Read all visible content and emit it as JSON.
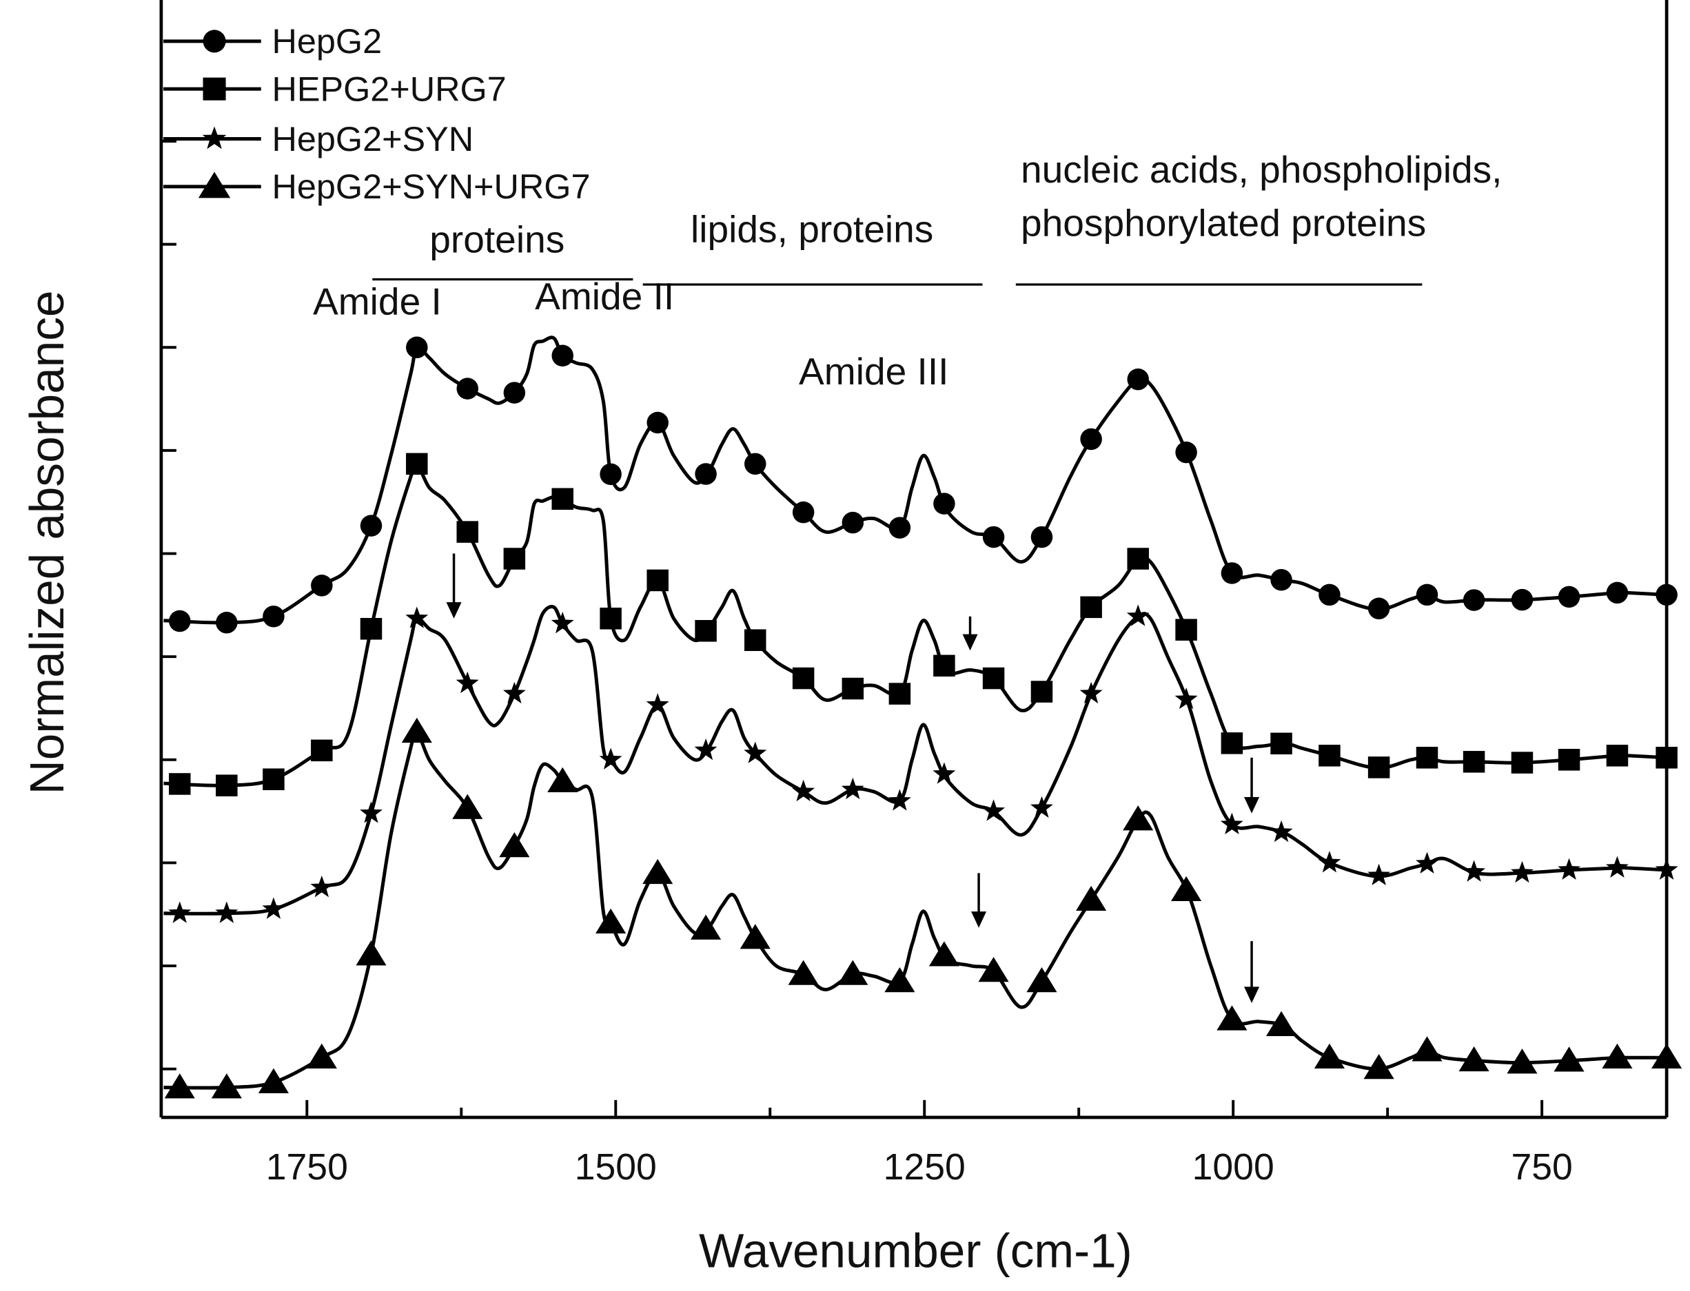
{
  "chart_data": {
    "type": "line",
    "title": "",
    "xlabel": "Wavenumber (cm-1)",
    "ylabel": "Normalized absorbance",
    "xlim": [
      1868,
      649
    ],
    "ylim": [
      0,
      10.84
    ],
    "x_reversed": true,
    "xticks_major": [
      1750,
      1500,
      1250,
      1000,
      750
    ],
    "xtick_labels": [
      "1750",
      "1500",
      "1250",
      "1000",
      "750"
    ],
    "xticks_minor": [
      1625,
      1375,
      1125,
      875
    ],
    "yticks_unlabeled": [
      0.47,
      1.47,
      2.47,
      3.47,
      4.47,
      5.47,
      6.47,
      7.47,
      8.47,
      9.47
    ],
    "grid": false,
    "legend_placement": "top-left",
    "x": [
      1866,
      1815,
      1777,
      1738,
      1717,
      1698,
      1682,
      1666,
      1661,
      1651,
      1638,
      1620,
      1603,
      1594,
      1582,
      1572,
      1566,
      1559,
      1550,
      1543,
      1532,
      1519,
      1510,
      1504,
      1493,
      1480,
      1466,
      1453,
      1436,
      1425,
      1414,
      1405,
      1396,
      1387,
      1370,
      1348,
      1330,
      1308,
      1291,
      1270,
      1260,
      1251,
      1242,
      1232,
      1212,
      1194,
      1172,
      1155,
      1132,
      1115,
      1093,
      1077,
      1067,
      1053,
      1036,
      1018,
      1001,
      979,
      959,
      944,
      922,
      884,
      856,
      843,
      829,
      803,
      768,
      728,
      689,
      680,
      649
    ],
    "marker_x": [
      1853,
      1815,
      1777,
      1738,
      1698,
      1661,
      1620,
      1582,
      1543,
      1504,
      1466,
      1427,
      1387,
      1348,
      1308,
      1270,
      1234,
      1194,
      1155,
      1115,
      1077,
      1038,
      1001,
      961,
      922,
      882,
      843,
      805,
      766,
      728,
      689,
      649
    ],
    "series": [
      {
        "name": "HepG2",
        "marker": "circle",
        "y": [
          4.82,
          4.8,
          4.86,
          5.16,
          5.32,
          5.74,
          6.42,
          7.21,
          7.47,
          7.37,
          7.21,
          7.07,
          6.97,
          6.93,
          7.03,
          7.21,
          7.49,
          7.53,
          7.56,
          7.39,
          7.32,
          7.26,
          6.95,
          6.24,
          6.11,
          6.53,
          6.74,
          6.42,
          6.16,
          6.26,
          6.53,
          6.68,
          6.53,
          6.34,
          6.11,
          5.87,
          5.68,
          5.77,
          5.81,
          5.72,
          6.11,
          6.42,
          6.21,
          5.89,
          5.68,
          5.63,
          5.39,
          5.63,
          6.21,
          6.58,
          6.95,
          7.16,
          7.11,
          6.84,
          6.4,
          5.79,
          5.28,
          5.26,
          5.21,
          5.18,
          5.07,
          4.93,
          5.03,
          5.07,
          5.0,
          5.02,
          5.02,
          5.05,
          5.09,
          5.09,
          5.07
        ]
      },
      {
        "name": "HEPG2+URG7",
        "marker": "square",
        "y": [
          3.24,
          3.22,
          3.28,
          3.56,
          3.71,
          4.74,
          5.58,
          6.21,
          6.34,
          6.11,
          5.98,
          5.68,
          5.26,
          5.16,
          5.42,
          5.58,
          5.95,
          5.98,
          6.02,
          6.0,
          5.92,
          5.89,
          5.79,
          4.84,
          4.63,
          4.95,
          5.21,
          4.84,
          4.63,
          4.74,
          4.95,
          5.11,
          4.84,
          4.63,
          4.42,
          4.26,
          4.05,
          4.16,
          4.19,
          4.11,
          4.53,
          4.82,
          4.63,
          4.32,
          4.34,
          4.26,
          3.95,
          4.13,
          4.63,
          4.95,
          5.16,
          5.42,
          5.39,
          5.11,
          4.68,
          4.11,
          3.63,
          3.6,
          3.63,
          3.58,
          3.51,
          3.39,
          3.47,
          3.49,
          3.45,
          3.45,
          3.44,
          3.47,
          3.51,
          3.51,
          3.49
        ]
      },
      {
        "name": "HepG2+SYN",
        "marker": "star",
        "y": [
          1.98,
          1.98,
          2.02,
          2.23,
          2.34,
          2.95,
          3.79,
          4.63,
          4.84,
          4.74,
          4.63,
          4.21,
          3.84,
          3.84,
          4.11,
          4.42,
          4.63,
          4.89,
          4.95,
          4.79,
          4.63,
          4.53,
          3.58,
          3.47,
          3.35,
          3.68,
          4.0,
          3.68,
          3.47,
          3.58,
          3.84,
          3.95,
          3.68,
          3.53,
          3.32,
          3.16,
          3.05,
          3.18,
          3.16,
          3.07,
          3.47,
          3.81,
          3.53,
          3.28,
          3.05,
          2.97,
          2.74,
          3.0,
          3.58,
          4.11,
          4.63,
          4.86,
          4.84,
          4.47,
          4.0,
          3.26,
          2.84,
          2.82,
          2.76,
          2.65,
          2.47,
          2.34,
          2.42,
          2.46,
          2.51,
          2.37,
          2.37,
          2.4,
          2.42,
          2.42,
          2.4
        ]
      },
      {
        "name": "HepG2+SYN+URG7",
        "marker": "triangle",
        "y": [
          0.29,
          0.29,
          0.34,
          0.58,
          0.79,
          1.58,
          2.74,
          3.58,
          3.74,
          3.47,
          3.26,
          3.0,
          2.53,
          2.42,
          2.63,
          2.89,
          3.21,
          3.42,
          3.37,
          3.26,
          3.18,
          3.11,
          2.0,
          1.89,
          1.68,
          2.11,
          2.37,
          2.05,
          1.79,
          1.84,
          2.05,
          2.16,
          1.95,
          1.74,
          1.47,
          1.39,
          1.24,
          1.39,
          1.37,
          1.32,
          1.68,
          2.0,
          1.74,
          1.53,
          1.47,
          1.42,
          1.07,
          1.32,
          1.79,
          2.11,
          2.53,
          2.89,
          2.93,
          2.53,
          2.16,
          1.47,
          0.95,
          0.93,
          0.89,
          0.74,
          0.58,
          0.47,
          0.58,
          0.65,
          0.58,
          0.55,
          0.53,
          0.55,
          0.58,
          0.58,
          0.58
        ]
      }
    ],
    "annotations": {
      "labels": [
        {
          "text": "proteins",
          "x": 1596,
          "y": 8.39,
          "anchor": "middle"
        },
        {
          "text": "lipids, proteins",
          "x": 1341,
          "y": 8.49,
          "anchor": "middle"
        },
        {
          "text": "nucleic acids, phospholipids,",
          "x": 1172,
          "y": 9.07,
          "anchor": "start"
        },
        {
          "text": "phosphorylated proteins",
          "x": 1172,
          "y": 8.55,
          "anchor": "start"
        },
        {
          "text": "Amide I",
          "x": 1693,
          "y": 7.79,
          "anchor": "middle"
        },
        {
          "text": "Amide II",
          "x": 1509,
          "y": 7.84,
          "anchor": "middle"
        },
        {
          "text": "Amide III",
          "x": 1291,
          "y": 7.11,
          "anchor": "middle"
        }
      ],
      "brackets": [
        {
          "x1": 1697,
          "x2": 1486,
          "y": 8.13
        },
        {
          "x1": 1478,
          "x2": 1203,
          "y": 8.08
        },
        {
          "x1": 1176,
          "x2": 847,
          "y": 8.08
        }
      ],
      "arrows": [
        {
          "x": 1631,
          "y_from": 5.47,
          "y_to": 4.84
        },
        {
          "x": 1213,
          "y_from": 4.86,
          "y_to": 4.53
        },
        {
          "x": 985,
          "y_from": 3.49,
          "y_to": 2.95
        },
        {
          "x": 1206,
          "y_from": 2.37,
          "y_to": 1.84
        },
        {
          "x": 985,
          "y_from": 1.71,
          "y_to": 1.11
        }
      ]
    },
    "colors": {
      "line": "#000000",
      "background": "#ffffff"
    }
  }
}
